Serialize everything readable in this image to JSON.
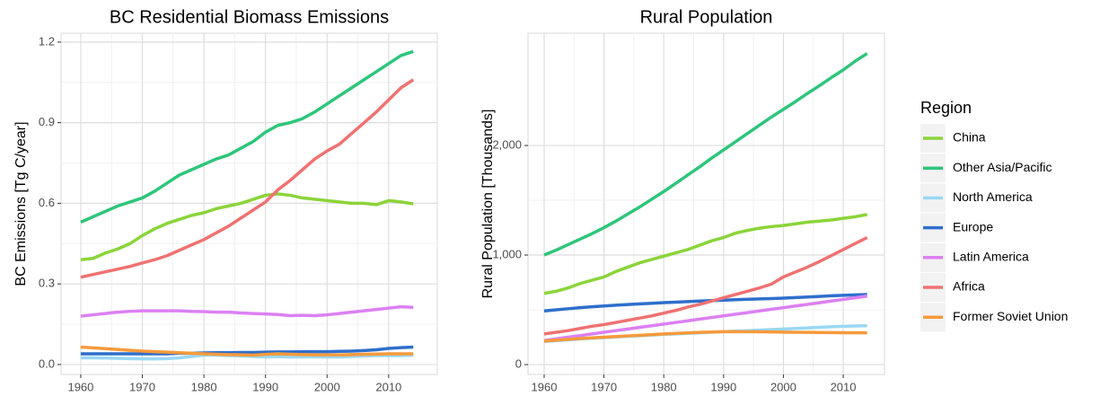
{
  "chart_data": [
    {
      "type": "line",
      "title": "BC Residential Biomass Emissions",
      "y_label": "BC Emissions [Tg C/year]",
      "x": [
        1960,
        1962,
        1964,
        1966,
        1968,
        1970,
        1972,
        1974,
        1976,
        1978,
        1980,
        1982,
        1984,
        1986,
        1988,
        1990,
        1992,
        1994,
        1996,
        1998,
        2000,
        2002,
        2004,
        2006,
        2008,
        2010,
        2012,
        2014
      ],
      "xlim": [
        1956.8,
        2017.9
      ],
      "xticks": [
        1960,
        1970,
        1980,
        1990,
        2000,
        2010
      ],
      "ylim": [
        -0.037,
        1.233
      ],
      "yticks": [
        {
          "value": 0,
          "label": "0.0"
        },
        0.3,
        0.6,
        0.9,
        1.2
      ],
      "grid": true,
      "series": [
        {
          "name": "China",
          "color": "#8bd43a",
          "values": [
            0.39,
            0.395,
            0.415,
            0.43,
            0.45,
            0.48,
            0.505,
            0.525,
            0.54,
            0.555,
            0.565,
            0.58,
            0.59,
            0.6,
            0.615,
            0.63,
            0.635,
            0.63,
            0.62,
            0.615,
            0.61,
            0.605,
            0.6,
            0.6,
            0.595,
            0.61,
            0.605,
            0.598
          ]
        },
        {
          "name": "Other Asia/Pacific",
          "color": "#2fc57b",
          "values": [
            0.53,
            0.55,
            0.57,
            0.59,
            0.605,
            0.62,
            0.645,
            0.675,
            0.705,
            0.725,
            0.745,
            0.765,
            0.78,
            0.805,
            0.83,
            0.865,
            0.89,
            0.9,
            0.915,
            0.94,
            0.97,
            1.0,
            1.03,
            1.06,
            1.09,
            1.12,
            1.15,
            1.165
          ]
        },
        {
          "name": "North America",
          "color": "#9ad8f4",
          "values": [
            0.025,
            0.025,
            0.024,
            0.023,
            0.022,
            0.021,
            0.021,
            0.022,
            0.025,
            0.03,
            0.035,
            0.035,
            0.033,
            0.032,
            0.03,
            0.028,
            0.03,
            0.028,
            0.028,
            0.029,
            0.028,
            0.028,
            0.03,
            0.032,
            0.033,
            0.033,
            0.033,
            0.035
          ]
        },
        {
          "name": "Europe",
          "color": "#2f6fcc",
          "values": [
            0.04,
            0.04,
            0.04,
            0.04,
            0.04,
            0.04,
            0.04,
            0.04,
            0.042,
            0.042,
            0.043,
            0.044,
            0.044,
            0.045,
            0.045,
            0.046,
            0.047,
            0.047,
            0.048,
            0.048,
            0.048,
            0.049,
            0.05,
            0.052,
            0.055,
            0.06,
            0.063,
            0.065
          ]
        },
        {
          "name": "Latin America",
          "color": "#dc80f2",
          "values": [
            0.18,
            0.185,
            0.19,
            0.195,
            0.198,
            0.2,
            0.2,
            0.2,
            0.2,
            0.198,
            0.197,
            0.195,
            0.195,
            0.192,
            0.19,
            0.188,
            0.186,
            0.182,
            0.183,
            0.182,
            0.185,
            0.19,
            0.195,
            0.2,
            0.205,
            0.21,
            0.215,
            0.213
          ]
        },
        {
          "name": "Africa",
          "color": "#ef7272",
          "values": [
            0.325,
            0.335,
            0.345,
            0.355,
            0.365,
            0.378,
            0.39,
            0.405,
            0.425,
            0.445,
            0.465,
            0.49,
            0.515,
            0.545,
            0.575,
            0.605,
            0.65,
            0.685,
            0.725,
            0.765,
            0.795,
            0.82,
            0.86,
            0.9,
            0.94,
            0.985,
            1.03,
            1.06
          ]
        },
        {
          "name": "Former Soviet Union",
          "color": "#f69a3c",
          "values": [
            0.065,
            0.062,
            0.059,
            0.056,
            0.053,
            0.05,
            0.048,
            0.046,
            0.044,
            0.042,
            0.04,
            0.038,
            0.037,
            0.036,
            0.035,
            0.038,
            0.04,
            0.038,
            0.037,
            0.036,
            0.036,
            0.036,
            0.037,
            0.038,
            0.039,
            0.04,
            0.04,
            0.04
          ]
        }
      ]
    },
    {
      "type": "line",
      "title": "Rural Population",
      "y_label": "Rural Population [Thousands]",
      "x": [
        1960,
        1962,
        1964,
        1966,
        1968,
        1970,
        1972,
        1974,
        1976,
        1978,
        1980,
        1982,
        1984,
        1986,
        1988,
        1990,
        1992,
        1994,
        1996,
        1998,
        2000,
        2002,
        2004,
        2006,
        2008,
        2010,
        2012,
        2014
      ],
      "xlim": [
        1957.3,
        2016.9
      ],
      "xticks": [
        1960,
        1970,
        1980,
        1990,
        2000,
        2010
      ],
      "ylim": [
        -90,
        3025
      ],
      "yticks": [
        0,
        {
          "value": 1000,
          "label": "1,000"
        },
        {
          "value": 2000,
          "label": "2,000"
        }
      ],
      "grid": true,
      "series": [
        {
          "color": "#8bd43a",
          "values": [
            650,
            670,
            700,
            740,
            770,
            800,
            850,
            890,
            930,
            960,
            990,
            1020,
            1050,
            1090,
            1130,
            1160,
            1200,
            1225,
            1245,
            1260,
            1270,
            1285,
            1300,
            1310,
            1320,
            1335,
            1350,
            1370
          ]
        },
        {
          "color": "#2fc57b",
          "values": [
            1000,
            1045,
            1095,
            1145,
            1195,
            1250,
            1310,
            1375,
            1440,
            1510,
            1580,
            1655,
            1730,
            1805,
            1885,
            1960,
            2035,
            2110,
            2185,
            2260,
            2330,
            2400,
            2475,
            2545,
            2620,
            2690,
            2770,
            2840
          ]
        },
        {
          "color": "#9ad8f4",
          "values": [
            210,
            218,
            226,
            234,
            240,
            246,
            252,
            258,
            264,
            270,
            276,
            280,
            285,
            290,
            295,
            300,
            305,
            310,
            315,
            320,
            325,
            330,
            335,
            340,
            345,
            350,
            353,
            355
          ]
        },
        {
          "color": "#2f6fcc",
          "values": [
            490,
            500,
            510,
            520,
            528,
            535,
            542,
            548,
            555,
            560,
            566,
            570,
            575,
            580,
            584,
            588,
            592,
            596,
            600,
            603,
            607,
            612,
            617,
            622,
            628,
            632,
            636,
            640
          ]
        },
        {
          "color": "#dc80f2",
          "values": [
            220,
            235,
            250,
            265,
            280,
            295,
            310,
            325,
            340,
            355,
            370,
            385,
            400,
            415,
            430,
            445,
            460,
            475,
            490,
            505,
            520,
            535,
            550,
            565,
            580,
            595,
            610,
            625
          ]
        },
        {
          "color": "#ef7272",
          "values": [
            280,
            295,
            310,
            330,
            350,
            365,
            385,
            405,
            425,
            445,
            470,
            495,
            525,
            550,
            580,
            610,
            640,
            670,
            700,
            735,
            800,
            845,
            890,
            940,
            995,
            1050,
            1105,
            1160
          ]
        },
        {
          "color": "#f69a3c",
          "values": [
            215,
            223,
            231,
            238,
            244,
            250,
            256,
            262,
            268,
            274,
            280,
            285,
            290,
            294,
            297,
            300,
            300,
            300,
            299,
            298,
            296,
            295,
            294,
            293,
            292,
            291,
            290,
            290
          ]
        }
      ]
    }
  ],
  "legend": {
    "title": "Region",
    "position": "right"
  }
}
